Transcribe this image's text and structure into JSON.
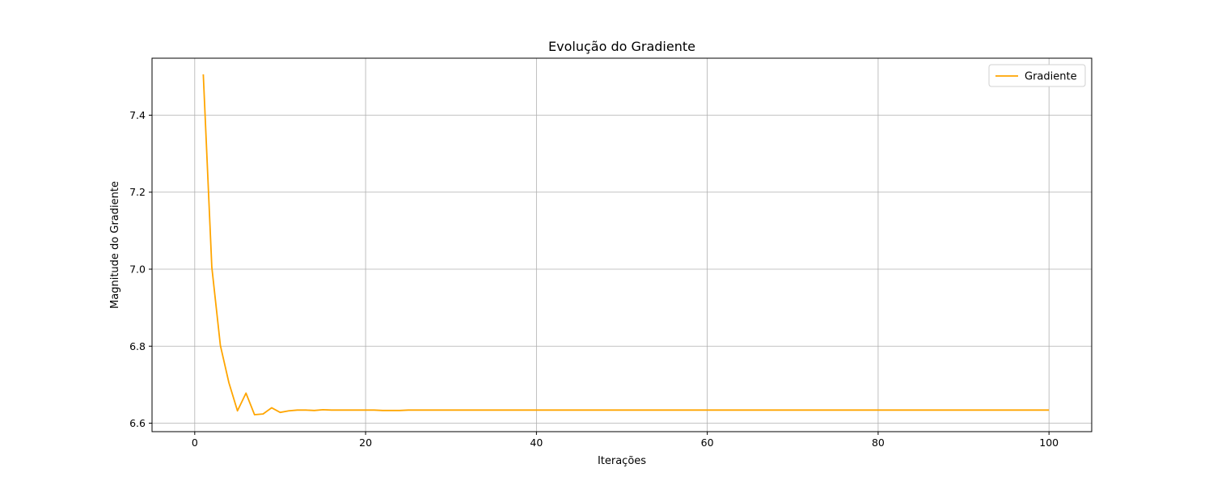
{
  "chart_data": {
    "type": "line",
    "title": "Evolução do Gradiente",
    "xlabel": "Iterações",
    "ylabel": "Magnitude do Gradiente",
    "xlim": [
      -5,
      105
    ],
    "ylim": [
      6.578,
      7.548
    ],
    "xticks": [
      0,
      20,
      40,
      60,
      80,
      100
    ],
    "yticks": [
      6.6,
      6.8,
      7.0,
      7.2,
      7.4
    ],
    "xtick_labels": [
      "0",
      "20",
      "40",
      "60",
      "80",
      "100"
    ],
    "ytick_labels": [
      "6.6",
      "6.8",
      "7.0",
      "7.2",
      "7.4"
    ],
    "grid": true,
    "legend_position": "top-right",
    "series": [
      {
        "name": "Gradiente",
        "color": "#ffa500",
        "x": [
          1,
          2,
          3,
          4,
          5,
          6,
          7,
          8,
          9,
          10,
          11,
          12,
          13,
          14,
          15,
          16,
          17,
          18,
          19,
          20,
          21,
          22,
          23,
          24,
          25,
          26,
          27,
          28,
          29,
          30,
          31,
          32,
          33,
          34,
          35,
          36,
          37,
          38,
          39,
          40,
          41,
          42,
          43,
          44,
          45,
          46,
          47,
          48,
          49,
          50,
          51,
          52,
          53,
          54,
          55,
          56,
          57,
          58,
          59,
          60,
          61,
          62,
          63,
          64,
          65,
          66,
          67,
          68,
          69,
          70,
          71,
          72,
          73,
          74,
          75,
          76,
          77,
          78,
          79,
          80,
          81,
          82,
          83,
          84,
          85,
          86,
          87,
          88,
          89,
          90,
          91,
          92,
          93,
          94,
          95,
          96,
          97,
          98,
          99,
          100
        ],
        "values": [
          7.506,
          7.005,
          6.802,
          6.705,
          6.632,
          6.678,
          6.622,
          6.624,
          6.64,
          6.628,
          6.632,
          6.634,
          6.634,
          6.633,
          6.635,
          6.634,
          6.634,
          6.634,
          6.634,
          6.634,
          6.634,
          6.633,
          6.633,
          6.633,
          6.634,
          6.634,
          6.634,
          6.634,
          6.634,
          6.634,
          6.634,
          6.634,
          6.634,
          6.634,
          6.634,
          6.634,
          6.634,
          6.634,
          6.634,
          6.634,
          6.634,
          6.634,
          6.634,
          6.634,
          6.634,
          6.634,
          6.634,
          6.634,
          6.634,
          6.634,
          6.634,
          6.634,
          6.634,
          6.634,
          6.634,
          6.634,
          6.634,
          6.634,
          6.634,
          6.634,
          6.634,
          6.634,
          6.634,
          6.634,
          6.634,
          6.634,
          6.634,
          6.634,
          6.634,
          6.634,
          6.634,
          6.634,
          6.634,
          6.634,
          6.634,
          6.634,
          6.634,
          6.634,
          6.634,
          6.634,
          6.634,
          6.634,
          6.634,
          6.634,
          6.634,
          6.634,
          6.634,
          6.634,
          6.634,
          6.634,
          6.634,
          6.634,
          6.634,
          6.634,
          6.634,
          6.634,
          6.634,
          6.634,
          6.634,
          6.634
        ]
      }
    ]
  }
}
